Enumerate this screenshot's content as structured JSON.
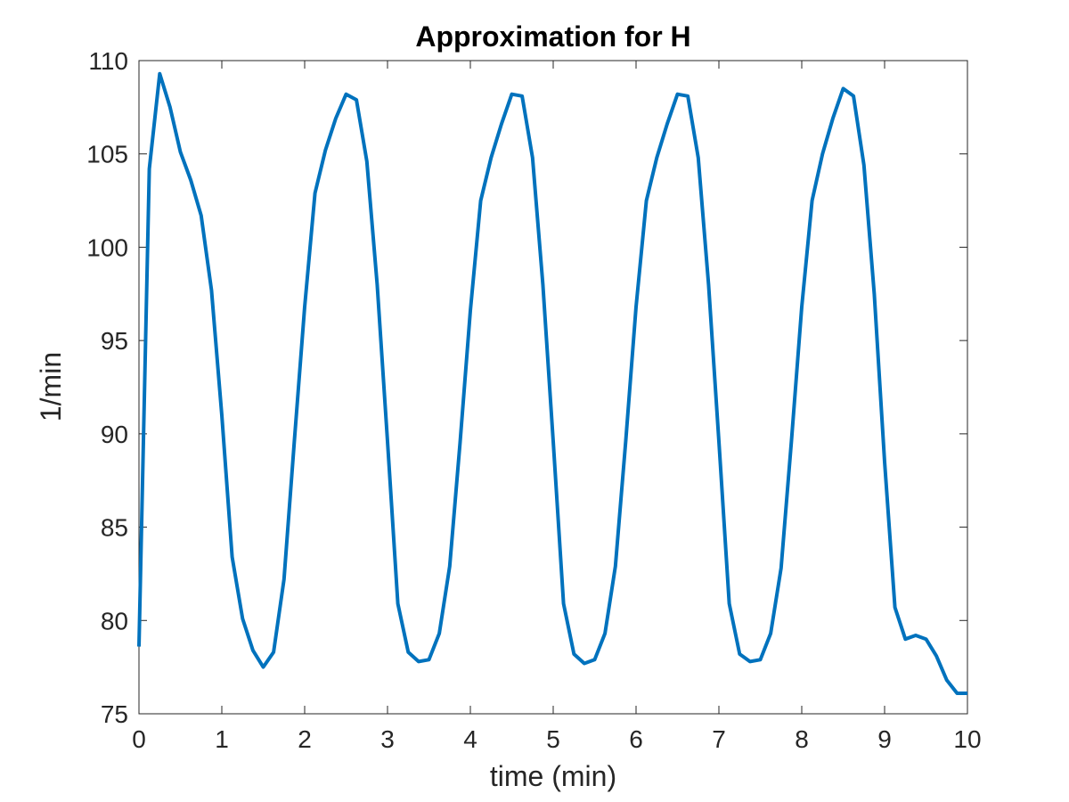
{
  "chart_data": {
    "type": "line",
    "title": "Approximation for H",
    "xlabel": "time (min)",
    "ylabel": "1/min",
    "xlim": [
      0,
      10
    ],
    "ylim": [
      75,
      110
    ],
    "xticks": [
      "0",
      "1",
      "2",
      "3",
      "4",
      "5",
      "6",
      "7",
      "8",
      "9",
      "10"
    ],
    "yticks": [
      "75",
      "80",
      "85",
      "90",
      "95",
      "100",
      "105",
      "110"
    ],
    "grid": false,
    "legend": "none",
    "line_color": "#0072BD",
    "series": [
      {
        "x": [
          0,
          0.125,
          0.25,
          0.375,
          0.5,
          0.625,
          0.75,
          0.875,
          1.0,
          1.125,
          1.25,
          1.375,
          1.5,
          1.625,
          1.75,
          1.875,
          2.0,
          2.125,
          2.25,
          2.375,
          2.5,
          2.625,
          2.75,
          2.875,
          3.0,
          3.125,
          3.25,
          3.375,
          3.5,
          3.625,
          3.75,
          3.875,
          4.0,
          4.125,
          4.25,
          4.375,
          4.5,
          4.625,
          4.75,
          4.875,
          5.0,
          5.125,
          5.25,
          5.375,
          5.5,
          5.625,
          5.75,
          5.875,
          6.0,
          6.125,
          6.25,
          6.375,
          6.5,
          6.625,
          6.75,
          6.875,
          7.0,
          7.125,
          7.25,
          7.375,
          7.5,
          7.625,
          7.75,
          7.875,
          8.0,
          8.125,
          8.25,
          8.375,
          8.5,
          8.625,
          8.75,
          8.875,
          9.0,
          9.125,
          9.25,
          9.375,
          9.5,
          9.625,
          9.75,
          9.875,
          10.0
        ],
        "values": [
          78.6,
          104.2,
          109.3,
          107.5,
          105.1,
          103.6,
          101.7,
          97.7,
          91.0,
          83.4,
          80.1,
          78.4,
          77.5,
          78.3,
          82.2,
          89.6,
          96.8,
          102.9,
          105.2,
          106.9,
          108.2,
          107.9,
          104.6,
          98.0,
          89.6,
          80.9,
          78.3,
          77.8,
          77.9,
          79.3,
          82.9,
          89.5,
          96.6,
          102.5,
          104.8,
          106.6,
          108.2,
          108.1,
          104.8,
          98.0,
          89.6,
          80.9,
          78.2,
          77.7,
          77.9,
          79.3,
          82.9,
          89.6,
          96.8,
          102.5,
          104.8,
          106.6,
          108.2,
          108.1,
          104.8,
          98.0,
          89.6,
          80.9,
          78.2,
          77.8,
          77.9,
          79.3,
          82.8,
          89.6,
          96.8,
          102.5,
          105.0,
          106.9,
          108.5,
          108.1,
          104.4,
          97.5,
          88.5,
          80.7,
          79.0,
          79.2,
          79.0,
          78.1,
          76.8,
          76.1,
          76.1
        ]
      }
    ]
  }
}
